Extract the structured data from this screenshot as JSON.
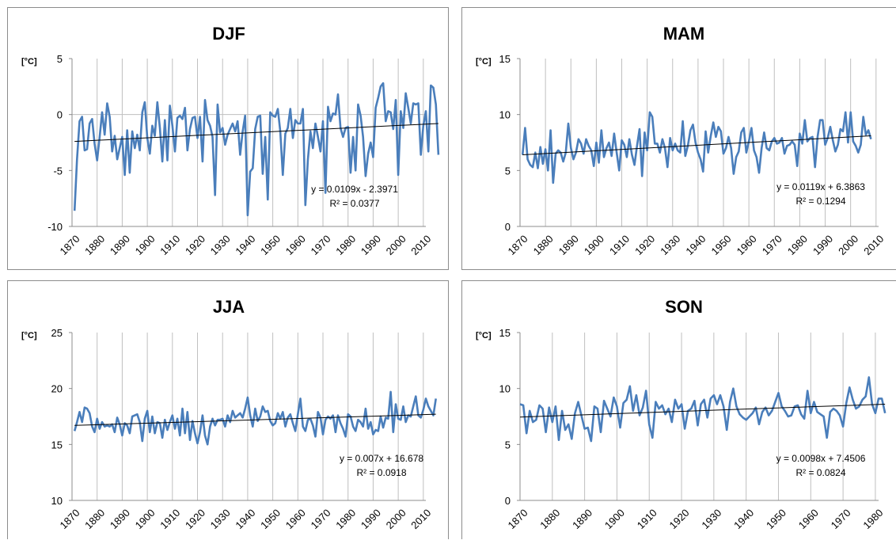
{
  "chart_data": [
    {
      "type": "line",
      "title": "DJF",
      "ylabel": "[°C]",
      "xlim": [
        1870,
        2011
      ],
      "ylim": [
        -10,
        5
      ],
      "yticks": [
        5,
        0,
        -5,
        -10
      ],
      "xticks": [
        1870,
        1880,
        1890,
        1900,
        1910,
        1920,
        1930,
        1940,
        1950,
        1960,
        1970,
        1980,
        1990,
        2000,
        2010
      ],
      "grid": "vertical",
      "color": "#4a7ebb",
      "equation": "y = 0.0109x - 2.3971",
      "r2": "R² = 0.0377",
      "trend": [
        -2.4,
        -0.8
      ],
      "x_start": 1871,
      "values": [
        -8.6,
        -4.0,
        -0.6,
        -0.2,
        -3.2,
        -3.1,
        -0.8,
        -0.4,
        -2.6,
        -4.1,
        -2.0,
        0.2,
        -1.8,
        1.0,
        -0.2,
        -3.3,
        -1.9,
        -4.0,
        -3.0,
        -2.0,
        -5.4,
        -1.4,
        -5.2,
        -1.5,
        -3.0,
        -1.8,
        -3.2,
        0.2,
        1.1,
        -2.1,
        -3.5,
        -1.0,
        -1.9,
        1.1,
        -1.2,
        -4.2,
        -0.5,
        -4.1,
        0.8,
        -1.0,
        -3.3,
        -0.3,
        -0.1,
        -0.4,
        0.6,
        -3.2,
        -1.3,
        -0.3,
        -0.2,
        -2.1,
        -0.2,
        -4.2,
        1.3,
        -0.5,
        -1.0,
        -2.0,
        -7.2,
        0.9,
        -1.6,
        -1.2,
        -2.7,
        -1.8,
        -1.3,
        -0.8,
        -1.5,
        -0.6,
        -3.6,
        -1.5,
        -0.1,
        -9.0,
        -5.1,
        -4.8,
        -1.3,
        -0.2,
        -0.1,
        -5.3,
        -2.0,
        -7.6,
        0.2,
        -0.1,
        -0.2,
        0.5,
        -1.5,
        -5.4,
        -1.7,
        -1.2,
        0.5,
        -2.1,
        -0.5,
        -0.8,
        -0.8,
        0.5,
        -8.1,
        -4.0,
        -1.5,
        -3.0,
        -0.8,
        -2.0,
        -3.3,
        -0.6,
        -7.0,
        0.7,
        -0.6,
        0.1,
        0.0,
        1.8,
        -1.2,
        -2.0,
        -1.2,
        -1.1,
        -5.2,
        -2.0,
        -5.0,
        0.9,
        -0.1,
        -2.0,
        -5.5,
        -3.5,
        -2.5,
        -3.8,
        0.6,
        1.5,
        2.5,
        2.8,
        -0.6,
        0.3,
        0.2,
        -1.3,
        1.3,
        -5.4,
        0.3,
        -1.2,
        1.9,
        0.6,
        -0.8,
        1.0,
        0.9,
        1.0,
        -3.6,
        -1.0,
        0.3,
        -3.3,
        2.6,
        2.4,
        0.9,
        -3.6
      ]
    },
    {
      "type": "line",
      "title": "MAM",
      "ylabel": "[°C]",
      "xlim": [
        1870,
        2011
      ],
      "ylim": [
        0,
        15
      ],
      "yticks": [
        15,
        10,
        5,
        0
      ],
      "xticks": [
        1870,
        1880,
        1890,
        1900,
        1910,
        1920,
        1930,
        1940,
        1950,
        1960,
        1970,
        1980,
        1990,
        2000,
        2010
      ],
      "grid": "vertical",
      "color": "#4a7ebb",
      "equation": "y = 0.0119x + 6.3863",
      "r2": "R² = 0.1294",
      "trend": [
        6.4,
        8.1
      ],
      "x_start": 1871,
      "values": [
        6.4,
        8.8,
        6.0,
        5.5,
        5.3,
        6.6,
        5.2,
        7.1,
        5.6,
        6.9,
        5.0,
        8.6,
        3.9,
        6.5,
        6.8,
        6.6,
        5.8,
        6.6,
        9.2,
        7.0,
        6.0,
        6.6,
        7.8,
        7.4,
        6.5,
        7.8,
        7.2,
        6.8,
        5.4,
        7.5,
        5.7,
        8.6,
        6.2,
        7.0,
        7.5,
        6.3,
        8.3,
        6.6,
        5.0,
        7.7,
        7.3,
        6.2,
        7.8,
        6.4,
        5.5,
        7.2,
        8.7,
        4.5,
        8.4,
        6.8,
        10.2,
        9.8,
        7.4,
        7.4,
        6.6,
        7.8,
        7.0,
        5.3,
        7.9,
        6.8,
        7.4,
        6.8,
        6.6,
        9.4,
        6.3,
        7.2,
        8.6,
        9.1,
        7.5,
        6.6,
        6.0,
        4.9,
        8.5,
        6.6,
        8.1,
        9.3,
        8.0,
        8.9,
        8.5,
        6.5,
        7.0,
        8.0,
        7.0,
        4.7,
        6.2,
        6.7,
        8.4,
        8.8,
        6.6,
        7.6,
        8.8,
        6.8,
        6.2,
        4.8,
        7.0,
        8.4,
        7.0,
        6.8,
        7.6,
        7.9,
        7.4,
        7.5,
        7.9,
        6.5,
        7.2,
        7.3,
        7.6,
        7.3,
        5.4,
        8.3,
        7.4,
        9.5,
        7.6,
        7.9,
        8.0,
        5.3,
        8.0,
        9.5,
        9.5,
        7.3,
        7.9,
        8.9,
        7.7,
        6.7,
        7.3,
        8.7,
        8.5,
        10.2,
        7.5,
        10.2,
        7.6,
        7.2,
        6.6,
        7.3,
        9.8,
        8.2,
        8.6,
        7.8
      ]
    },
    {
      "type": "line",
      "title": "JJA",
      "ylabel": "[°C]",
      "xlim": [
        1870,
        2011
      ],
      "ylim": [
        10,
        25
      ],
      "yticks": [
        25,
        20,
        15,
        10
      ],
      "xticks": [
        1870,
        1880,
        1890,
        1900,
        1910,
        1920,
        1930,
        1940,
        1950,
        1960,
        1970,
        1980,
        1990,
        2000,
        2010
      ],
      "grid": "vertical",
      "color": "#4a7ebb",
      "equation": "y = 0.007x + 16.678",
      "r2": "R² = 0.0918",
      "trend": [
        16.7,
        17.7
      ],
      "x_start": 1871,
      "values": [
        16.2,
        17.0,
        17.9,
        17.0,
        18.3,
        18.2,
        17.8,
        16.6,
        16.1,
        17.3,
        16.4,
        17.0,
        16.6,
        16.7,
        16.6,
        16.8,
        16.1,
        17.4,
        16.8,
        15.8,
        16.9,
        16.7,
        16.0,
        17.5,
        17.6,
        17.7,
        17.0,
        15.3,
        17.3,
        18.0,
        16.1,
        17.5,
        16.0,
        17.0,
        16.9,
        15.6,
        17.2,
        16.3,
        17.0,
        17.6,
        16.4,
        17.3,
        15.8,
        18.2,
        16.0,
        17.9,
        15.4,
        17.1,
        16.0,
        15.1,
        16.1,
        17.6,
        15.8,
        15.0,
        16.6,
        17.3,
        16.7,
        17.2,
        17.2,
        17.3,
        16.6,
        17.6,
        17.0,
        18.0,
        17.4,
        17.6,
        17.8,
        17.4,
        18.2,
        19.2,
        17.6,
        16.6,
        18.2,
        17.1,
        17.5,
        18.4,
        17.9,
        18.0,
        17.1,
        16.7,
        16.9,
        17.8,
        17.3,
        17.9,
        16.6,
        17.4,
        17.7,
        16.9,
        16.2,
        17.7,
        19.1,
        16.6,
        16.2,
        17.2,
        17.3,
        16.7,
        15.7,
        17.9,
        17.4,
        15.9,
        17.2,
        17.5,
        17.3,
        17.6,
        16.1,
        17.6,
        16.9,
        16.4,
        15.7,
        17.7,
        17.5,
        16.6,
        16.2,
        17.2,
        17.0,
        16.6,
        18.2,
        16.4,
        17.0,
        15.9,
        16.3,
        16.2,
        17.5,
        16.5,
        17.4,
        17.3,
        19.7,
        16.1,
        18.6,
        17.3,
        17.2,
        18.4,
        17.0,
        17.6,
        17.5,
        18.4,
        19.3,
        17.6,
        17.4,
        18.1,
        19.1,
        18.4,
        18.0,
        17.6,
        19.1
      ]
    },
    {
      "type": "line",
      "title": "SON",
      "ylabel": "[°C]",
      "xlim": [
        1870,
        1981
      ],
      "ylim": [
        0,
        15
      ],
      "yticks": [
        15,
        10,
        5,
        0
      ],
      "xticks": [
        1870,
        1880,
        1890,
        1900,
        1910,
        1920,
        1930,
        1940,
        1950,
        1960,
        1970,
        1980
      ],
      "grid": "vertical",
      "color": "#4a7ebb",
      "equation": "y = 0.0098x + 7.4506",
      "r2": "R² = 0.0824",
      "trend": [
        7.45,
        8.6
      ],
      "x_start": 1870,
      "values": [
        8.6,
        8.5,
        6.0,
        8.0,
        7.0,
        7.2,
        8.5,
        8.2,
        6.1,
        8.3,
        7.0,
        8.4,
        5.4,
        8.0,
        6.3,
        6.8,
        5.5,
        7.8,
        8.8,
        7.6,
        6.4,
        6.5,
        5.3,
        8.4,
        8.2,
        6.1,
        8.9,
        8.2,
        7.5,
        9.2,
        8.4,
        6.5,
        8.7,
        9.0,
        10.2,
        8.0,
        9.4,
        7.6,
        8.3,
        9.8,
        6.8,
        5.6,
        8.8,
        8.2,
        8.5,
        7.7,
        8.2,
        7.0,
        9.0,
        8.2,
        8.6,
        6.4,
        8.0,
        8.2,
        8.9,
        6.7,
        8.6,
        9.0,
        7.4,
        9.1,
        9.4,
        8.6,
        9.4,
        8.4,
        6.3,
        8.8,
        10.0,
        8.4,
        7.7,
        7.4,
        7.2,
        7.5,
        7.8,
        8.3,
        6.8,
        7.9,
        8.3,
        7.6,
        8.0,
        8.8,
        9.6,
        8.4,
        8.0,
        7.5,
        7.6,
        8.4,
        8.5,
        7.7,
        7.3,
        9.8,
        7.8,
        8.8,
        7.9,
        7.7,
        7.5,
        5.6,
        7.9,
        8.2,
        8.0,
        7.6,
        6.6,
        8.7,
        10.1,
        9.0,
        8.2,
        8.4,
        9.0,
        9.3,
        11.0,
        8.6,
        7.8,
        9.1,
        9.1,
        7.8
      ]
    }
  ]
}
